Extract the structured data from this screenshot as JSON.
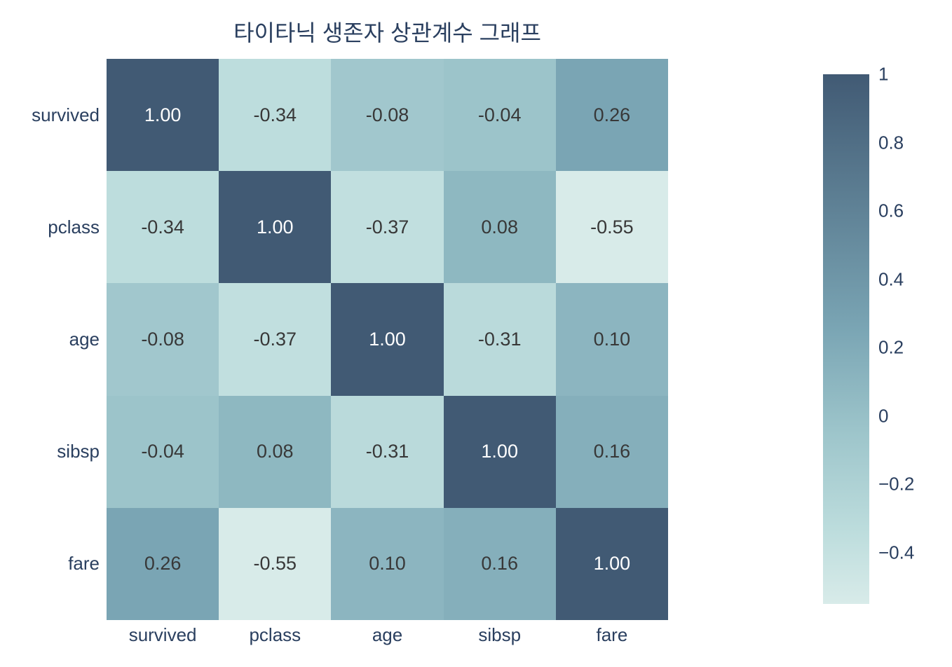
{
  "title": "타이타닉 생존자 상관계수 그래프",
  "colors": {
    "background": "#ffffff",
    "title_text": "#2a3f5f",
    "axis_text": "#2a3f5f",
    "cell_text_dark": "#383838",
    "cell_text_light": "#ffffff",
    "heatmap_min_color": "#d8ebe9",
    "heatmap_max_color": "#415a74"
  },
  "chart_data": {
    "type": "heatmap",
    "title": "타이타닉 생존자 상관계수 그래프",
    "x_categories": [
      "survived",
      "pclass",
      "age",
      "sibsp",
      "fare"
    ],
    "y_categories": [
      "survived",
      "pclass",
      "age",
      "sibsp",
      "fare"
    ],
    "matrix": [
      [
        1.0,
        -0.34,
        -0.08,
        -0.04,
        0.26
      ],
      [
        -0.34,
        1.0,
        -0.37,
        0.08,
        -0.55
      ],
      [
        -0.08,
        -0.37,
        1.0,
        -0.31,
        0.1
      ],
      [
        -0.04,
        0.08,
        -0.31,
        1.0,
        0.16
      ],
      [
        0.26,
        -0.55,
        0.1,
        0.16,
        1.0
      ]
    ],
    "cell_label_decimals": 2,
    "color_domain": [
      -0.55,
      1
    ],
    "colorscale": [
      {
        "t": 0.0,
        "rgb": [
          216,
          235,
          233
        ]
      },
      {
        "t": 0.135,
        "rgb": [
          189,
          221,
          221
        ]
      },
      {
        "t": 0.33,
        "rgb": [
          156,
          196,
          202
        ]
      },
      {
        "t": 0.52,
        "rgb": [
          122,
          165,
          180
        ]
      },
      {
        "t": 1.0,
        "rgb": [
          65,
          90,
          116
        ]
      }
    ],
    "colorbar": {
      "position": "right",
      "tick_labels": [
        "1",
        "0.8",
        "0.6",
        "0.4",
        "0.2",
        "0",
        "−0.2",
        "−0.4"
      ],
      "tick_values": [
        1,
        0.8,
        0.6,
        0.4,
        0.2,
        0,
        -0.2,
        -0.4
      ]
    },
    "grid": false,
    "legend_position": "right-colorbar"
  }
}
